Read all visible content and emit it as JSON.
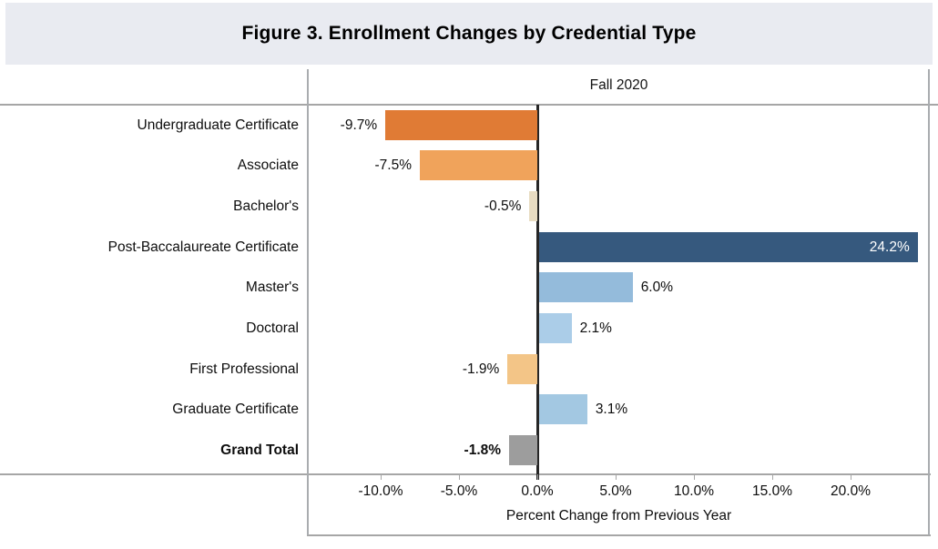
{
  "title": "Figure 3. Enrollment Changes by Credential Type",
  "chart_data": {
    "type": "bar",
    "orientation": "horizontal",
    "title": "Figure 3. Enrollment Changes by Credential Type",
    "column_header": "Fall 2020",
    "categories": [
      "Undergraduate Certificate",
      "Associate",
      "Bachelor's",
      "Post-Baccalaureate Certificate",
      "Master's",
      "Doctoral",
      "First Professional",
      "Graduate Certificate",
      "Grand Total"
    ],
    "values": [
      -9.7,
      -7.5,
      -0.5,
      24.2,
      6.0,
      2.1,
      -1.9,
      3.1,
      -1.8
    ],
    "value_labels": [
      "-9.7%",
      "-7.5%",
      "-0.5%",
      "24.2%",
      "6.0%",
      "2.1%",
      "-1.9%",
      "3.1%",
      "-1.8%"
    ],
    "bar_colors": [
      "#e07b35",
      "#f0a35b",
      "#e8dcc2",
      "#36597e",
      "#94bbdb",
      "#abcde8",
      "#f3c587",
      "#a3c8e2",
      "#9d9d9d"
    ],
    "bold_flags": [
      false,
      false,
      false,
      false,
      false,
      false,
      false,
      false,
      true
    ],
    "xlabel": "Percent Change from Previous Year",
    "ylabel": "",
    "x_tick_labels": [
      "-10.0%",
      "-5.0%",
      "0.0%",
      "5.0%",
      "10.0%",
      "15.0%",
      "20.0%"
    ],
    "x_tick_values": [
      -10,
      -5,
      0,
      5,
      10,
      15,
      20
    ],
    "xlim": [
      -14.7,
      25.1
    ],
    "legend": "none",
    "grid": "outer borders with dark zero baseline",
    "accent_colors": {
      "header_band": "#e9ebf1",
      "zero_line": "#262626",
      "grid_line": "#a6a6a6",
      "inside_label_text": "#ffffff"
    }
  }
}
